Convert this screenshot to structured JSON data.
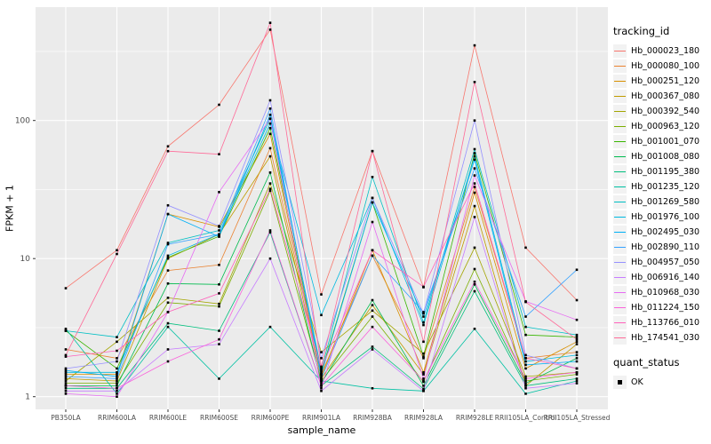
{
  "figure": {
    "xlabel": "sample_name",
    "ylabel": "FPKM + 1",
    "legend_title": "tracking_id",
    "quant_legend_title": "quant_status",
    "quant_legend_item": "OK"
  },
  "style_colors": {
    "panel_background": "#EBEBEB",
    "gridline": "#FFFFFF",
    "tick_label": "#4D4D4D",
    "tick_mark": "#333333",
    "point": "#000000",
    "legend_key_background": "#F2F2F2"
  },
  "chart_data": {
    "type": "line",
    "title": "",
    "xlabel": "sample_name",
    "ylabel": "FPKM + 1",
    "y_scale": "log10",
    "y_ticks": [
      "1",
      "10",
      "100"
    ],
    "y_minor_gridlines": [
      3.162,
      31.62,
      316.2
    ],
    "ylim_approx": [
      0.75,
      660
    ],
    "grid": "white major+minor gridlines on grey panel",
    "legend_position": "right",
    "legend_title": "tracking_id",
    "quant_status_legend": {
      "title": "quant_status",
      "items": [
        "OK"
      ]
    },
    "point_style": "small black square (quant_status OK)",
    "categories": [
      "PB350LA",
      "RRIM600LA",
      "RRIM600LE",
      "RRIM600SE",
      "RRIM600PE",
      "RRIM901LA",
      "RRIM928BA",
      "RRIM928LA",
      "RRIM928LE",
      "RRII105LA_Control",
      "RRII105LA_Stressed"
    ],
    "series": [
      {
        "name": "Hb_000023_180",
        "color": "#F8766D",
        "values": [
          6.1,
          11.5,
          65,
          130,
          455,
          5.5,
          60,
          6.2,
          350,
          12,
          5.0
        ]
      },
      {
        "name": "Hb_000080_100",
        "color": "#EA8331",
        "values": [
          2.2,
          1.9,
          8.2,
          9.0,
          63,
          1.45,
          10.5,
          1.9,
          33,
          1.9,
          2.1
        ]
      },
      {
        "name": "Hb_000251_120",
        "color": "#D89000",
        "values": [
          1.45,
          1.45,
          21,
          17,
          80,
          1.4,
          11.5,
          1.5,
          30,
          1.6,
          2.5
        ]
      },
      {
        "name": "Hb_000367_080",
        "color": "#C09B00",
        "values": [
          1.35,
          1.3,
          10,
          15,
          55,
          1.35,
          4.6,
          1.45,
          24,
          1.2,
          2.4
        ]
      },
      {
        "name": "Hb_000392_540",
        "color": "#A3A500",
        "values": [
          1.3,
          2.5,
          5.2,
          4.7,
          35,
          2.1,
          4.2,
          2.05,
          12,
          1.4,
          1.5
        ]
      },
      {
        "name": "Hb_000963_120",
        "color": "#7CAE00",
        "values": [
          1.25,
          1.25,
          4.8,
          4.5,
          31,
          1.3,
          3.8,
          1.28,
          8.4,
          1.3,
          1.45
        ]
      },
      {
        "name": "Hb_001001_070",
        "color": "#39B600",
        "values": [
          3.0,
          1.6,
          10.2,
          14.5,
          88,
          1.5,
          25.5,
          1.95,
          58,
          2.8,
          2.7
        ]
      },
      {
        "name": "Hb_001008_080",
        "color": "#00BB4E",
        "values": [
          1.2,
          1.2,
          6.6,
          6.5,
          42,
          1.25,
          5.0,
          1.2,
          6.5,
          1.25,
          1.9
        ]
      },
      {
        "name": "Hb_001195_380",
        "color": "#00BF7D",
        "values": [
          1.15,
          1.15,
          3.4,
          3.0,
          15.5,
          1.2,
          2.3,
          1.14,
          5.8,
          1.2,
          1.35
        ]
      },
      {
        "name": "Hb_001235_120",
        "color": "#00C1A3",
        "values": [
          3.1,
          1.05,
          3.2,
          1.35,
          3.2,
          1.3,
          1.15,
          1.1,
          3.1,
          1.05,
          1.3
        ]
      },
      {
        "name": "Hb_001269_580",
        "color": "#00BFC4",
        "values": [
          3.0,
          2.7,
          13,
          16,
          103,
          1.55,
          39,
          3.45,
          62,
          3.2,
          2.8
        ]
      },
      {
        "name": "Hb_001976_100",
        "color": "#00BAE0",
        "values": [
          1.5,
          1.5,
          10.5,
          15,
          95,
          3.9,
          27.5,
          3.3,
          55,
          1.8,
          2.0
        ]
      },
      {
        "name": "Hb_002495_030",
        "color": "#00B0F6",
        "values": [
          1.55,
          1.4,
          21,
          14.4,
          110,
          1.45,
          25.5,
          3.8,
          52,
          1.7,
          1.8
        ]
      },
      {
        "name": "Hb_002890_110",
        "color": "#35A2FF",
        "values": [
          1.4,
          1.35,
          12.7,
          15,
          122,
          1.35,
          10.5,
          4.1,
          45,
          3.8,
          8.3
        ]
      },
      {
        "name": "Hb_004957_050",
        "color": "#9590FF",
        "values": [
          1.6,
          1.8,
          24.3,
          17.2,
          140,
          1.9,
          27.5,
          4.0,
          100,
          2.0,
          1.6
        ]
      },
      {
        "name": "Hb_006916_140",
        "color": "#C77CFF",
        "values": [
          1.1,
          1.1,
          2.2,
          2.4,
          10,
          1.1,
          2.2,
          1.1,
          20,
          1.15,
          1.25
        ]
      },
      {
        "name": "Hb_010968_030",
        "color": "#E76BF3",
        "values": [
          1.05,
          1.0,
          4.1,
          30.3,
          103,
          1.15,
          18.4,
          1.35,
          40,
          4.9,
          3.6
        ]
      },
      {
        "name": "Hb_011224_150",
        "color": "#FA62DB",
        "values": [
          1.2,
          1.15,
          1.8,
          2.6,
          16,
          1.2,
          3.2,
          1.3,
          6.8,
          1.35,
          1.5
        ]
      },
      {
        "name": "Hb_113766_010",
        "color": "#FF62BC",
        "values": [
          1.95,
          2.15,
          4.1,
          5.6,
          32,
          1.6,
          11.5,
          6.25,
          35,
          1.9,
          1.6
        ]
      },
      {
        "name": "Hb_174541_030",
        "color": "#FF6A98",
        "values": [
          2.0,
          10.8,
          60,
          57,
          510,
          1.65,
          60,
          2.5,
          190,
          4.85,
          2.6
        ]
      }
    ]
  }
}
